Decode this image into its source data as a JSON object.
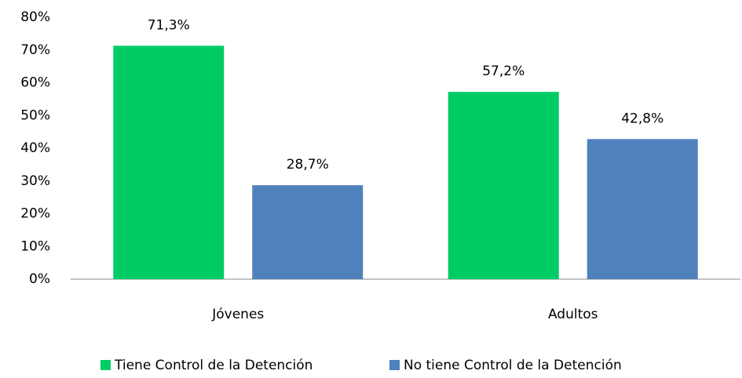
{
  "chart_data": {
    "type": "bar",
    "categories": [
      "Jóvenes",
      "Adultos"
    ],
    "series": [
      {
        "name": "Tiene Control de la Detención",
        "color": "#00cc66",
        "values": [
          71.3,
          57.2
        ],
        "value_labels": [
          "71,3%",
          "57,2%"
        ]
      },
      {
        "name": "No tiene Control de la Detención",
        "color": "#4f81bd",
        "values": [
          28.7,
          42.8
        ],
        "value_labels": [
          "28,7%",
          "42,8%"
        ]
      }
    ],
    "ylim": [
      0,
      80
    ],
    "yticks": [
      {
        "value": 0,
        "label": "0%"
      },
      {
        "value": 10,
        "label": "10%"
      },
      {
        "value": 20,
        "label": "20%"
      },
      {
        "value": 30,
        "label": "30%"
      },
      {
        "value": 40,
        "label": "40%"
      },
      {
        "value": 50,
        "label": "50%"
      },
      {
        "value": 60,
        "label": "60%"
      },
      {
        "value": 70,
        "label": "70%"
      },
      {
        "value": 80,
        "label": "80%"
      }
    ],
    "grid": false,
    "legend": "bottom"
  }
}
